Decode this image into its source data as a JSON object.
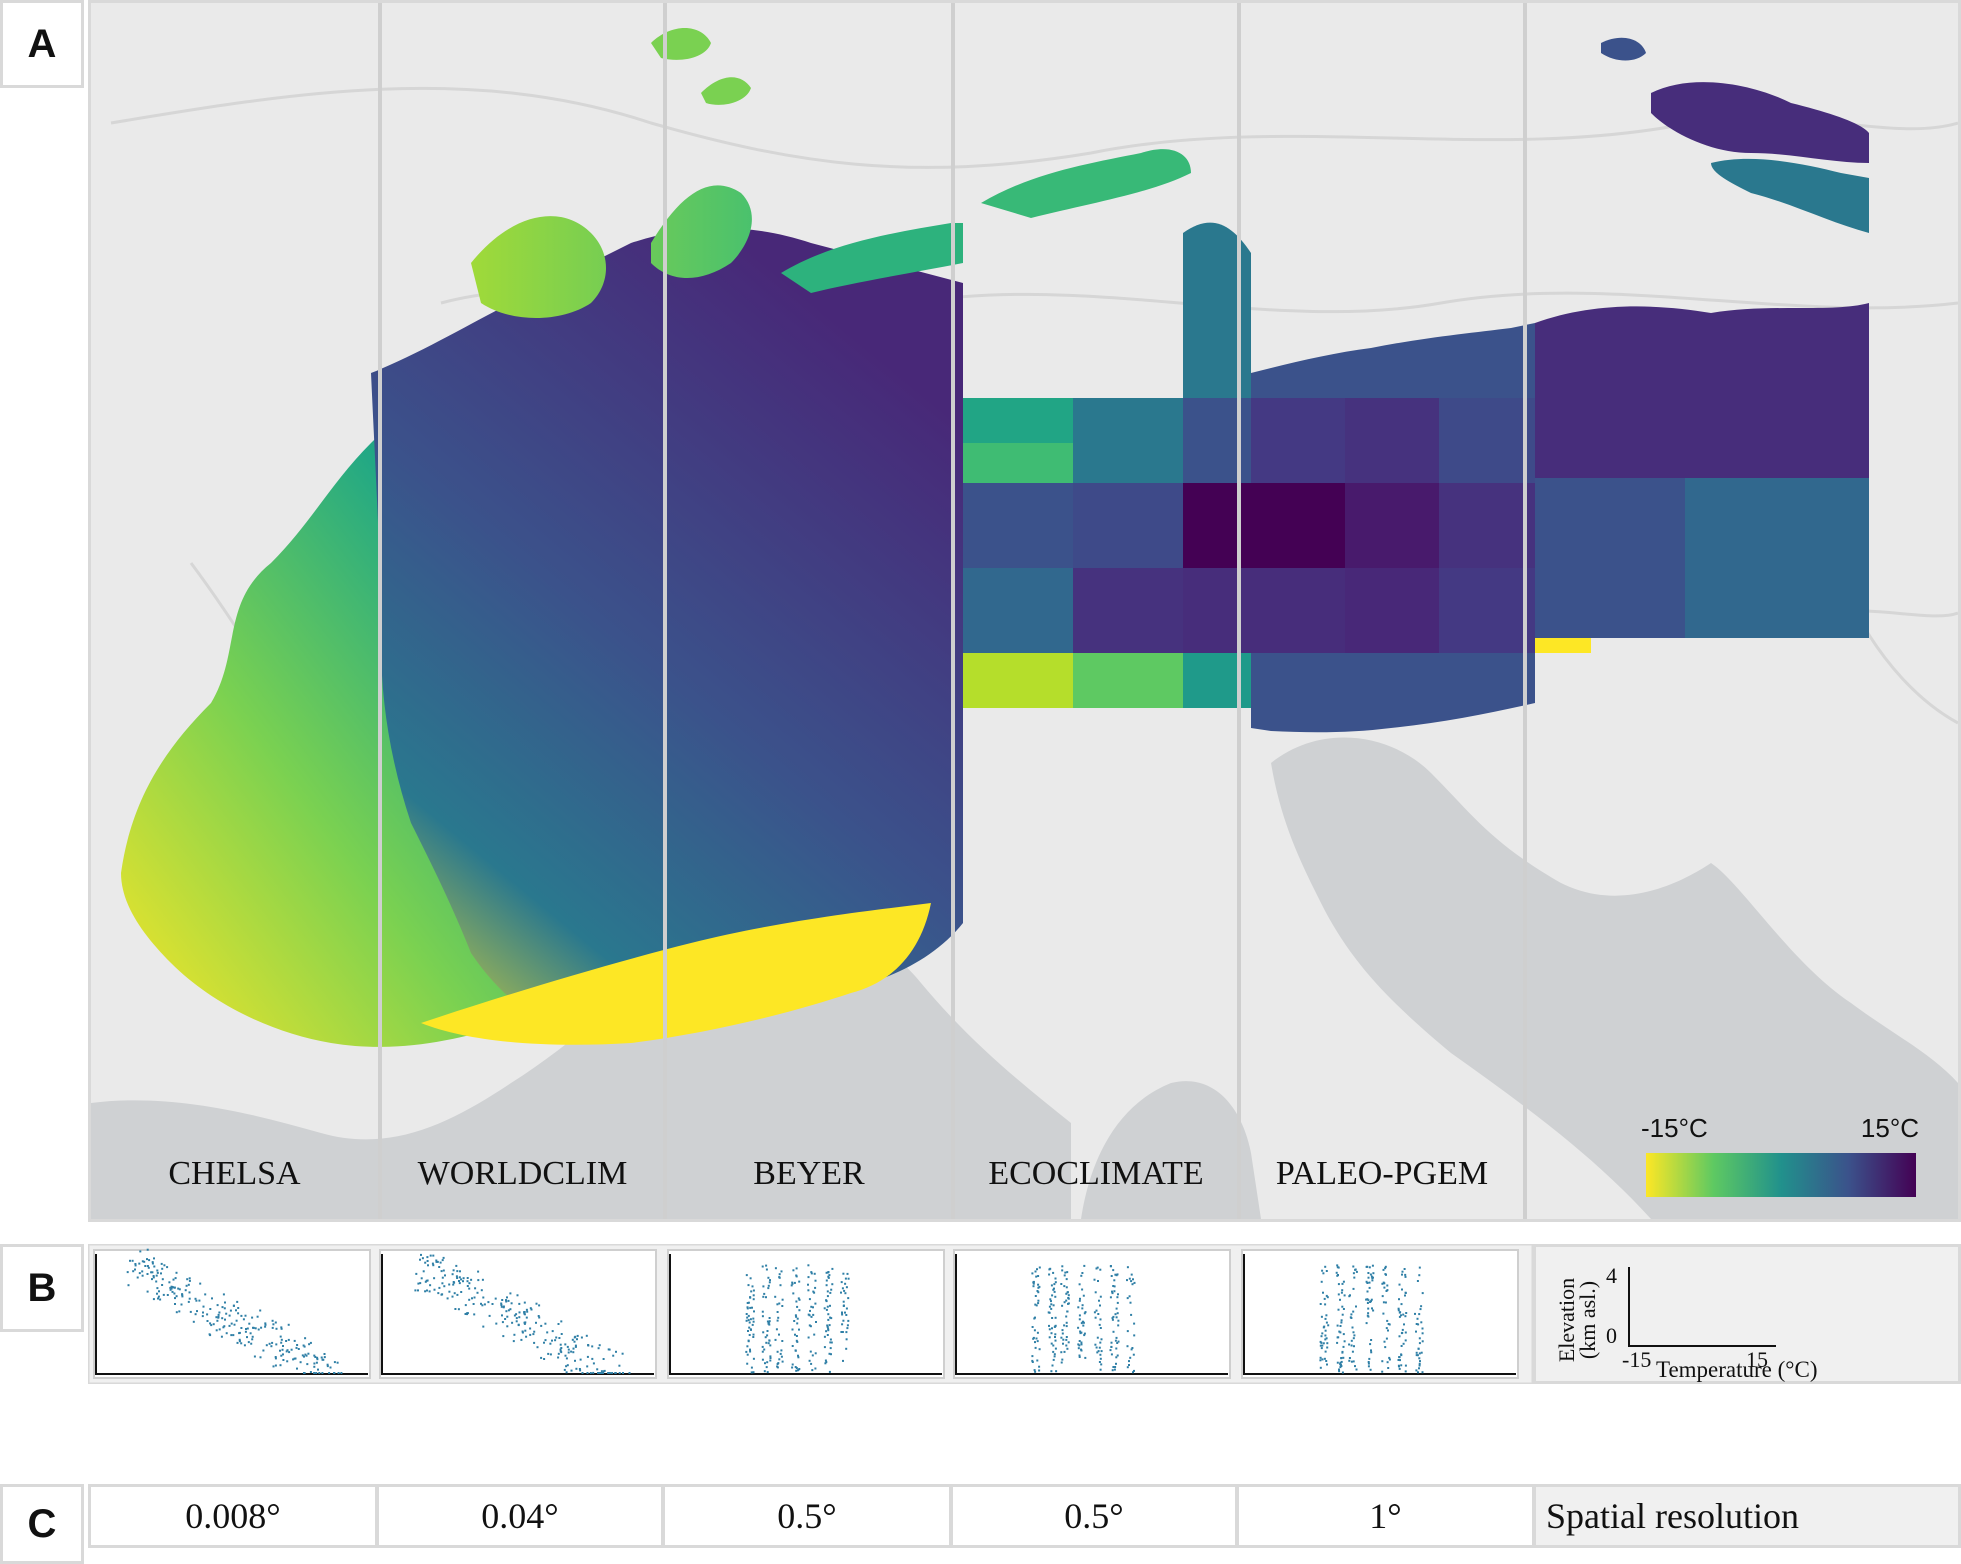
{
  "panels": {
    "a": "A",
    "b": "B",
    "c": "C"
  },
  "datasets": [
    {
      "name": "CHELSA",
      "resolution": "0.008°"
    },
    {
      "name": "WORLDCLIM",
      "resolution": "0.04°"
    },
    {
      "name": "BEYER",
      "resolution": "0.5°"
    },
    {
      "name": "ECOCLIMATE",
      "resolution": "0.5°"
    },
    {
      "name": "PALEO-PGEM",
      "resolution": "1°"
    }
  ],
  "legend": {
    "min_label": "-15°C",
    "max_label": "15°C",
    "colors": [
      "#fde725",
      "#5ec962",
      "#21918c",
      "#3b528b",
      "#440154"
    ]
  },
  "axes_key": {
    "y_label_line1": "Elevation",
    "y_label_line2": "(km asl.)",
    "y_ticks": [
      "4",
      "0"
    ],
    "x_ticks": [
      "-15",
      "15"
    ],
    "x_label": "Temperature (°C)"
  },
  "resolution_title": "Spatial resolution",
  "colors": {
    "land": "#eaeaea",
    "sea": "#cfd1d3",
    "scatter": "#2f7fa6"
  }
}
